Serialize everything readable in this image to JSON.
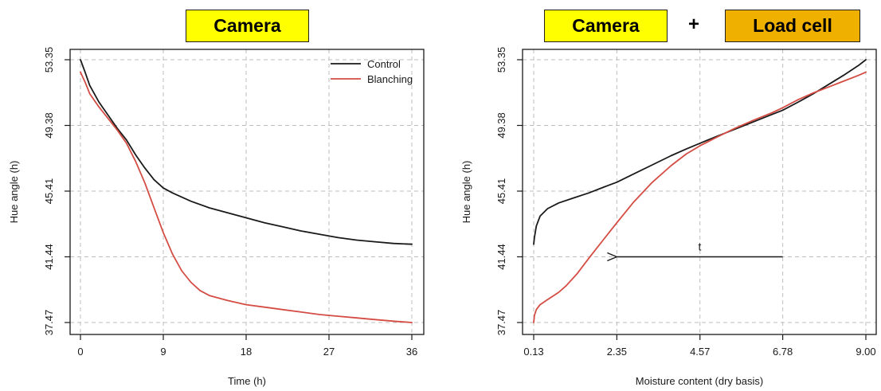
{
  "headers": {
    "left_box": "Camera",
    "right_box_1": "Camera",
    "plus": "+",
    "right_box_2": "Load cell"
  },
  "colors": {
    "control": "#1a1a1a",
    "blanching": "#d44c43",
    "box_yellow": "#ffff00",
    "box_orange": "#f0b000",
    "grid": "#bdbdbd"
  },
  "chart_data": [
    {
      "type": "line",
      "xlabel": "Time (h)",
      "ylabel": "Hue angle (h)",
      "xlim": [
        0,
        36
      ],
      "ylim": [
        37.47,
        53.35
      ],
      "xticks": [
        0,
        9,
        18,
        27,
        36
      ],
      "xtick_labels": [
        "0",
        "9",
        "18",
        "27",
        "36"
      ],
      "yticks": [
        37.47,
        41.44,
        45.41,
        49.38,
        53.35
      ],
      "ytick_labels": [
        "37.47",
        "41.44",
        "45.41",
        "49.38",
        "53.35"
      ],
      "grid": true,
      "legend": "top-right",
      "series": [
        {
          "name": "Control",
          "color": "#1a1a1a",
          "x": [
            0,
            0.5,
            1,
            2,
            3,
            4,
            5,
            6,
            7,
            8,
            9,
            10,
            12,
            14,
            16,
            18,
            20,
            22,
            24,
            26,
            28,
            30,
            32,
            34,
            36
          ],
          "y": [
            53.35,
            52.6,
            51.8,
            50.8,
            50.0,
            49.2,
            48.5,
            47.6,
            46.8,
            46.1,
            45.6,
            45.3,
            44.8,
            44.4,
            44.1,
            43.8,
            43.5,
            43.25,
            43.0,
            42.8,
            42.6,
            42.45,
            42.35,
            42.25,
            42.2
          ]
        },
        {
          "name": "Blanching",
          "color": "#d44c43",
          "x": [
            0,
            0.5,
            1,
            2,
            3,
            4,
            5,
            6,
            7,
            8,
            9,
            10,
            11,
            12,
            13,
            14,
            16,
            18,
            20,
            22,
            24,
            26,
            28,
            30,
            32,
            34,
            36
          ],
          "y": [
            52.6,
            52.0,
            51.3,
            50.5,
            49.8,
            49.1,
            48.3,
            47.2,
            45.9,
            44.4,
            42.9,
            41.6,
            40.6,
            39.9,
            39.4,
            39.1,
            38.8,
            38.55,
            38.4,
            38.25,
            38.1,
            37.95,
            37.85,
            37.75,
            37.65,
            37.55,
            37.47
          ]
        }
      ]
    },
    {
      "type": "line",
      "xlabel": "Moisture content (dry basis)",
      "ylabel": "Hue angle (h)",
      "xlim": [
        0.13,
        9.0
      ],
      "ylim": [
        37.47,
        53.35
      ],
      "xticks": [
        0.13,
        2.35,
        4.57,
        6.78,
        9.0
      ],
      "xtick_labels": [
        "0.13",
        "2.35",
        "4.57",
        "6.78",
        "9.00"
      ],
      "yticks": [
        37.47,
        41.44,
        45.41,
        49.38,
        53.35
      ],
      "ytick_labels": [
        "37.47",
        "41.44",
        "45.41",
        "49.38",
        "53.35"
      ],
      "grid": true,
      "annotation": {
        "text": "t",
        "arrow_from": [
          6.78,
          41.44
        ],
        "arrow_to": [
          2.35,
          41.44
        ]
      },
      "series": [
        {
          "color": "#1a1a1a",
          "x": [
            0.13,
            0.15,
            0.2,
            0.3,
            0.5,
            0.8,
            1.2,
            1.6,
            2.0,
            2.35,
            2.8,
            3.3,
            3.8,
            4.2,
            4.57,
            5.0,
            5.5,
            6.0,
            6.5,
            6.78,
            7.2,
            7.6,
            8.0,
            8.4,
            8.8,
            9.0
          ],
          "y": [
            42.2,
            42.6,
            43.3,
            43.9,
            44.35,
            44.7,
            45.0,
            45.3,
            45.65,
            45.95,
            46.45,
            47.0,
            47.55,
            47.95,
            48.3,
            48.7,
            49.15,
            49.6,
            50.05,
            50.3,
            50.8,
            51.3,
            51.85,
            52.4,
            53.0,
            53.35
          ]
        },
        {
          "color": "#d44c43",
          "x": [
            0.13,
            0.15,
            0.2,
            0.3,
            0.5,
            0.8,
            1.0,
            1.3,
            1.6,
            2.0,
            2.35,
            2.8,
            3.3,
            3.8,
            4.2,
            4.57,
            5.0,
            5.5,
            6.0,
            6.5,
            6.78,
            7.2,
            7.6,
            8.0,
            8.4,
            8.8,
            9.0
          ],
          "y": [
            37.47,
            37.9,
            38.25,
            38.55,
            38.85,
            39.3,
            39.7,
            40.45,
            41.35,
            42.5,
            43.5,
            44.75,
            45.95,
            46.95,
            47.65,
            48.15,
            48.65,
            49.2,
            49.7,
            50.15,
            50.45,
            50.95,
            51.35,
            51.7,
            52.05,
            52.4,
            52.6
          ]
        }
      ]
    }
  ]
}
